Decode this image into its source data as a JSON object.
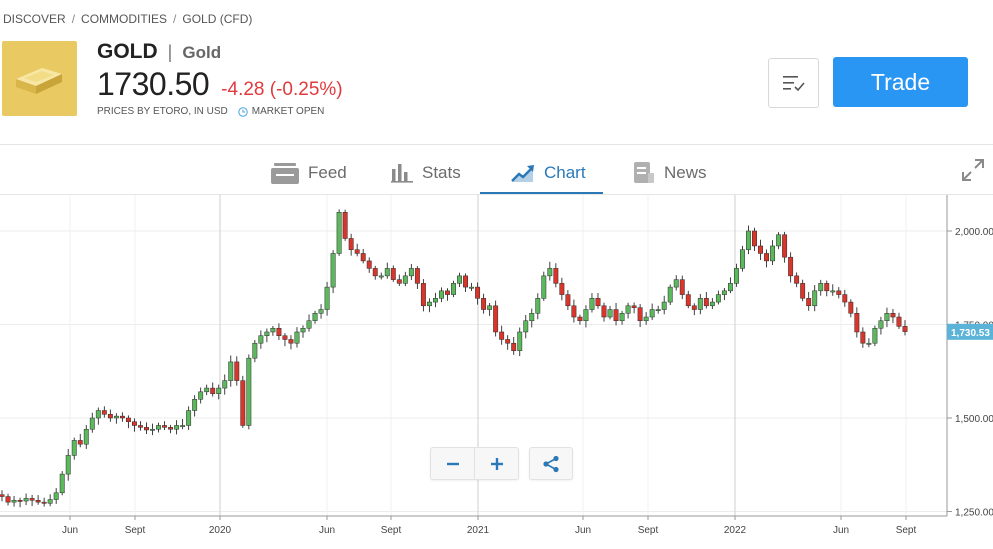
{
  "breadcrumb": [
    "DISCOVER",
    "COMMODITIES",
    "GOLD (CFD)"
  ],
  "instrument": {
    "symbol": "GOLD",
    "name": "Gold",
    "price": "1730.50",
    "change": "-4.28 (-0.25%)",
    "source": "PRICES BY ETORO, IN USD",
    "status": "MARKET OPEN"
  },
  "actions": {
    "watchlist_icon": "list-check-icon",
    "trade_label": "Trade"
  },
  "tabs": [
    {
      "label": "Feed",
      "icon": "feed-icon",
      "active": false
    },
    {
      "label": "Stats",
      "icon": "bar-chart-icon",
      "active": false
    },
    {
      "label": "Chart",
      "icon": "trend-chart-icon",
      "active": true
    },
    {
      "label": "News",
      "icon": "news-icon",
      "active": false
    }
  ],
  "colors": {
    "accent": "#2a78b8",
    "trade": "#2a96f3",
    "negative": "#e03a3e",
    "candle_up": "#5cb85c",
    "candle_down": "#d9352b",
    "last_price_tag": "#5bb4d8"
  },
  "chart_data": {
    "type": "candlestick",
    "x_tick_labels": [
      "Jun",
      "Sept",
      "2020",
      "Jun",
      "Sept",
      "2021",
      "Jun",
      "Sept",
      "2022",
      "Jun",
      "Sept"
    ],
    "y_tick_labels": [
      "2,000.00",
      "1,750.00",
      "1,500.00",
      "1,250.00"
    ],
    "y_ticks": [
      2000,
      1750,
      1500,
      1250
    ],
    "ylim": [
      1250,
      2100
    ],
    "last_price": 1730.53,
    "last_price_label": "1,730.53",
    "series_close": [
      1290,
      1275,
      1280,
      1278,
      1285,
      1280,
      1275,
      1272,
      1282,
      1300,
      1350,
      1400,
      1440,
      1430,
      1470,
      1500,
      1520,
      1510,
      1500,
      1505,
      1500,
      1490,
      1480,
      1475,
      1468,
      1470,
      1480,
      1475,
      1470,
      1480,
      1480,
      1520,
      1550,
      1570,
      1580,
      1565,
      1580,
      1600,
      1650,
      1600,
      1480,
      1660,
      1700,
      1720,
      1730,
      1740,
      1720,
      1710,
      1700,
      1730,
      1740,
      1760,
      1780,
      1790,
      1850,
      1940,
      2050,
      1980,
      1950,
      1940,
      1920,
      1900,
      1880,
      1880,
      1900,
      1870,
      1860,
      1880,
      1900,
      1860,
      1800,
      1810,
      1820,
      1840,
      1830,
      1860,
      1880,
      1850,
      1850,
      1820,
      1790,
      1800,
      1730,
      1710,
      1700,
      1680,
      1730,
      1760,
      1780,
      1820,
      1880,
      1900,
      1860,
      1830,
      1800,
      1770,
      1760,
      1790,
      1820,
      1800,
      1770,
      1790,
      1760,
      1780,
      1800,
      1795,
      1760,
      1770,
      1790,
      1790,
      1810,
      1850,
      1870,
      1830,
      1800,
      1790,
      1820,
      1800,
      1810,
      1830,
      1840,
      1860,
      1900,
      1950,
      2000,
      1960,
      1940,
      1920,
      1960,
      1990,
      1930,
      1880,
      1860,
      1820,
      1800,
      1840,
      1860,
      1840,
      1840,
      1830,
      1810,
      1780,
      1730,
      1700,
      1700,
      1740,
      1760,
      1780,
      1770,
      1745,
      1731
    ]
  }
}
